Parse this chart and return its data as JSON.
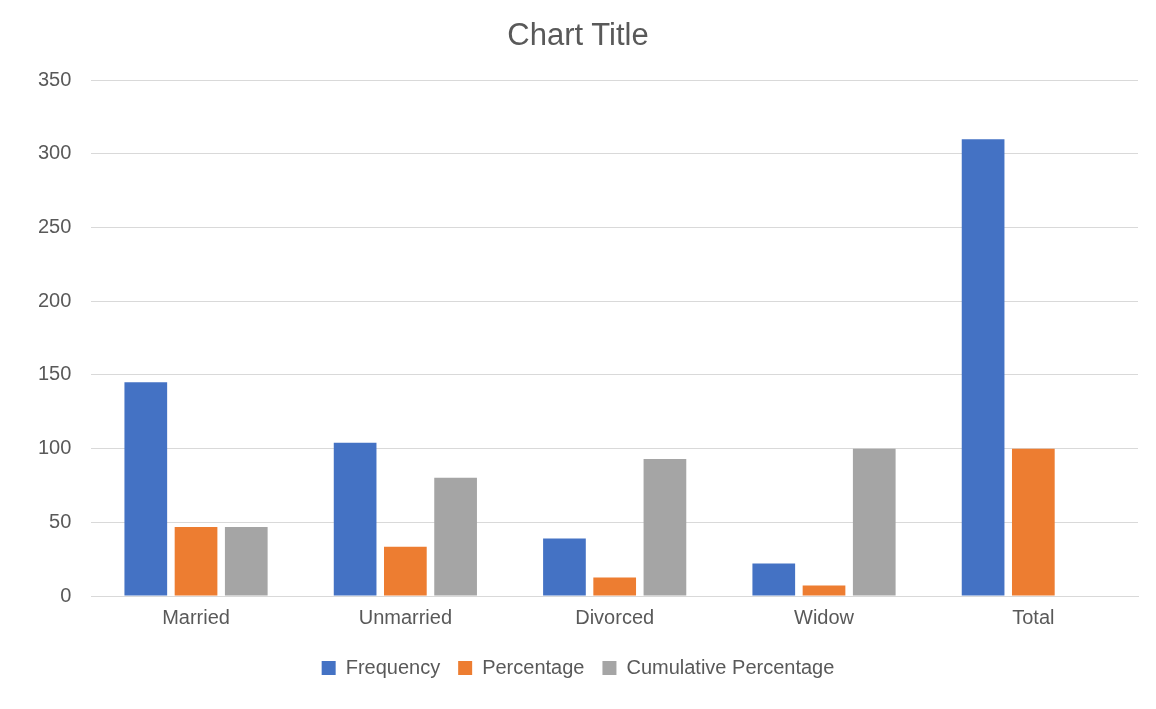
{
  "chart_data": {
    "type": "bar",
    "title": "Chart Title",
    "categories": [
      "Married",
      "Unmarried",
      "Divorced",
      "Widow",
      "Total"
    ],
    "series": [
      {
        "name": "Frequency",
        "color": "#4472c4",
        "values": [
          145,
          104,
          39,
          22,
          310
        ]
      },
      {
        "name": "Percentage",
        "color": "#ed7d31",
        "values": [
          46.8,
          33.5,
          12.6,
          7.1,
          100
        ]
      },
      {
        "name": "Cumulative Percentage",
        "color": "#a5a5a5",
        "values": [
          46.8,
          80.3,
          92.9,
          100,
          null
        ]
      }
    ],
    "ylim": [
      0,
      350
    ],
    "yticks": [
      0,
      50,
      100,
      150,
      200,
      250,
      300,
      350
    ],
    "grid": "y",
    "legend": "bottom"
  }
}
